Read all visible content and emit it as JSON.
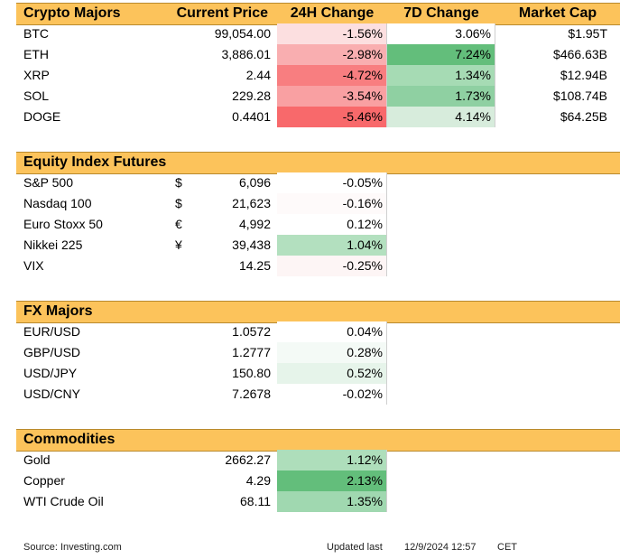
{
  "colors": {
    "header_bg": "#fcc35b",
    "neg_strong": "#f8696b",
    "pos_strong": "#63be7b"
  },
  "crypto": {
    "headers": {
      "name": "Crypto Majors",
      "price": "Current Price",
      "change_24h": "24H Change",
      "change_7d": "7D Change",
      "market_cap": "Market Cap"
    },
    "rows": [
      {
        "name": "BTC",
        "price": "99,054.00",
        "change_24h": "-1.56%",
        "change_7d": "3.06%",
        "market_cap": "$1.95T",
        "bg_24h": "#fcdfe0",
        "bg_7d": "#ffffff"
      },
      {
        "name": "ETH",
        "price": "3,886.01",
        "change_24h": "-2.98%",
        "change_7d": "7.24%",
        "market_cap": "$466.63B",
        "bg_24h": "#f9aeb0",
        "bg_7d": "#63be7b"
      },
      {
        "name": "XRP",
        "price": "2.44",
        "change_24h": "-4.72%",
        "change_7d": "1.34%",
        "market_cap": "$12.94B",
        "bg_24h": "#f87e80",
        "bg_7d": "#a6dbb4"
      },
      {
        "name": "SOL",
        "price": "229.28",
        "change_24h": "-3.54%",
        "change_7d": "1.73%",
        "market_cap": "$108.74B",
        "bg_24h": "#f9a0a2",
        "bg_7d": "#8fd0a2"
      },
      {
        "name": "DOGE",
        "price": "0.4401",
        "change_24h": "-5.46%",
        "change_7d": "4.14%",
        "market_cap": "$64.25B",
        "bg_24h": "#f8696b",
        "bg_7d": "#d7ecdc"
      }
    ]
  },
  "equity": {
    "headers": {
      "name": "Equity Index Futures"
    },
    "rows": [
      {
        "name": "S&P 500",
        "symbol": "$",
        "price": "6,096",
        "change_24h": "-0.05%",
        "bg_24h": "#ffffff"
      },
      {
        "name": "Nasdaq 100",
        "symbol": "$",
        "price": "21,623",
        "change_24h": "-0.16%",
        "bg_24h": "#fefafa"
      },
      {
        "name": "Euro Stoxx 50",
        "symbol": "€",
        "price": "4,992",
        "change_24h": "0.12%",
        "bg_24h": "#ffffff"
      },
      {
        "name": "Nikkei 225",
        "symbol": "¥",
        "price": "39,438",
        "change_24h": "1.04%",
        "bg_24h": "#b3e0bf"
      },
      {
        "name": "VIX",
        "symbol": "",
        "price": "14.25",
        "change_24h": "-0.25%",
        "bg_24h": "#fdf5f5"
      }
    ]
  },
  "fx": {
    "headers": {
      "name": "FX Majors"
    },
    "rows": [
      {
        "name": "EUR/USD",
        "price": "1.0572",
        "change_24h": "0.04%",
        "bg_24h": "#ffffff"
      },
      {
        "name": "GBP/USD",
        "price": "1.2777",
        "change_24h": "0.28%",
        "bg_24h": "#f4faf6"
      },
      {
        "name": "USD/JPY",
        "price": "150.80",
        "change_24h": "0.52%",
        "bg_24h": "#e6f4ea"
      },
      {
        "name": "USD/CNY",
        "price": "7.2678",
        "change_24h": "-0.02%",
        "bg_24h": "#ffffff"
      }
    ]
  },
  "commodities": {
    "headers": {
      "name": "Commodities"
    },
    "rows": [
      {
        "name": "Gold",
        "price": "2662.27",
        "change_24h": "1.12%",
        "bg_24h": "#aedebb"
      },
      {
        "name": "Copper",
        "price": "4.29",
        "change_24h": "2.13%",
        "bg_24h": "#63be7b"
      },
      {
        "name": "WTI Crude Oil",
        "price": "68.11",
        "change_24h": "1.35%",
        "bg_24h": "#a0d8b0"
      }
    ]
  },
  "footer": {
    "source": "Source: Investing.com",
    "updated_label": "Updated last",
    "timestamp": "12/9/2024 12:57",
    "timezone": "CET"
  }
}
